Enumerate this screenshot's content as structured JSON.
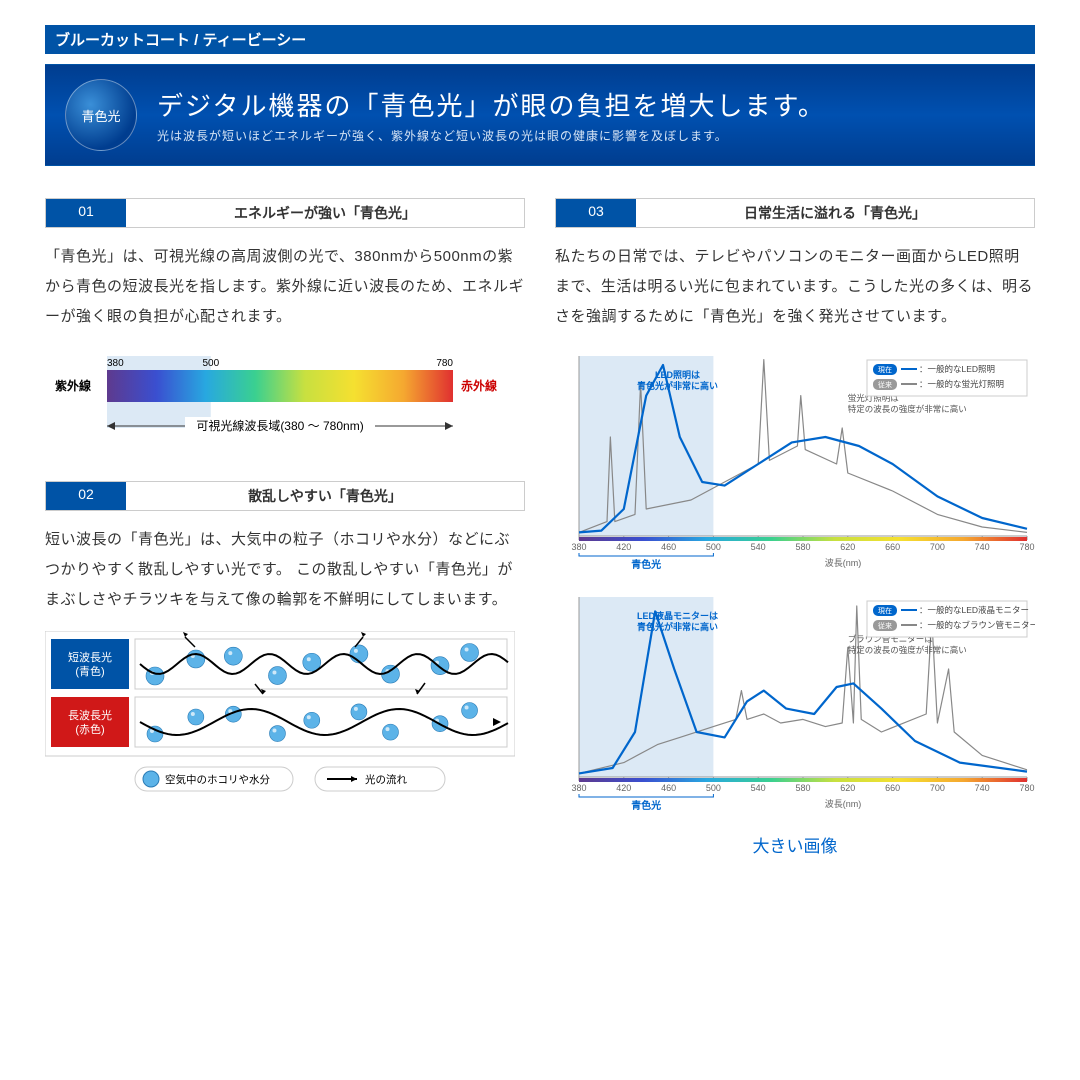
{
  "topbar": "ブルーカットコート  /  ティービーシー",
  "hero": {
    "circle": "青色光",
    "title": "デジタル機器の「青色光」が眼の負担を増大します。",
    "sub": "光は波長が短いほどエネルギーが強く、紫外線など短い波長の光は眼の健康に影響を及ぼします。"
  },
  "sec01": {
    "num": "01",
    "title": "エネルギーが強い「青色光」",
    "text": "「青色光」は、可視光線の高周波側の光で、380nmから500nmの紫から青色の短波長光を指します。紫外線に近い波長のため、エネルギーが強く眼の負担が心配されます。"
  },
  "sec02": {
    "num": "02",
    "title": "散乱しやすい「青色光」",
    "text": "短い波長の「青色光」は、大気中の粒子（ホコリや水分）などにぶつかりやすく散乱しやすい光です。 この散乱しやすい「青色光」がまぶしさやチラツキを与えて像の輪郭を不鮮明にしてしまいます。"
  },
  "sec03": {
    "num": "03",
    "title": "日常生活に溢れる「青色光」",
    "text": "私たちの日常では、テレビやパソコンのモニター画面からLED照明まで、生活は明るい光に包まれています。こうした光の多くは、明るさを強調するために「青色光」を強く発光させています。"
  },
  "spectrum": {
    "min": 380,
    "mid": 500,
    "max": 780,
    "left_label": "紫外線",
    "right_label": "赤外線",
    "caption": "可視光線波長域(380 〜 780nm)",
    "bluezone_color": "#dce9f5",
    "gradient": [
      "#5e3a8e",
      "#3a4fd0",
      "#28a8e0",
      "#3ad090",
      "#c8e040",
      "#f5e030",
      "#f5a830",
      "#e03030"
    ]
  },
  "scatter": {
    "short": {
      "label1": "短波長光",
      "label2": "(青色)",
      "bg": "#0053a6"
    },
    "long": {
      "label1": "長波長光",
      "label2": "(赤色)",
      "bg": "#d01818"
    },
    "legend_particle": "空気中のホコリや水分",
    "legend_flow": "光の流れ",
    "particle_color": "#5cb3e8"
  },
  "charts": {
    "xmin": 380,
    "xmax": 780,
    "xtick": 40,
    "xlabel": "波長(nm)",
    "blue_label": "青色光",
    "bluezone": [
      380,
      500
    ],
    "bluezone_color": "#dce9f5",
    "led_color": "#0066cc",
    "conv_color": "#888888",
    "chart1": {
      "note": "LED照明は\n青色光が非常に高い",
      "note2": "蛍光灯照明は\n特定の波長の強度が非常に高い",
      "legend": [
        {
          "badge": "現在",
          "text": "：一般的なLED照明"
        },
        {
          "badge": "従来",
          "text": "：一般的な蛍光灯照明"
        }
      ],
      "led": [
        [
          380,
          2
        ],
        [
          400,
          3
        ],
        [
          420,
          15
        ],
        [
          440,
          78
        ],
        [
          455,
          95
        ],
        [
          470,
          55
        ],
        [
          490,
          30
        ],
        [
          510,
          28
        ],
        [
          540,
          40
        ],
        [
          570,
          52
        ],
        [
          600,
          55
        ],
        [
          630,
          50
        ],
        [
          660,
          40
        ],
        [
          700,
          22
        ],
        [
          740,
          10
        ],
        [
          780,
          4
        ]
      ],
      "conv": [
        [
          380,
          2
        ],
        [
          405,
          8
        ],
        [
          408,
          55
        ],
        [
          412,
          8
        ],
        [
          430,
          12
        ],
        [
          435,
          85
        ],
        [
          440,
          15
        ],
        [
          480,
          20
        ],
        [
          540,
          40
        ],
        [
          545,
          98
        ],
        [
          550,
          42
        ],
        [
          575,
          50
        ],
        [
          578,
          78
        ],
        [
          582,
          48
        ],
        [
          610,
          40
        ],
        [
          615,
          60
        ],
        [
          620,
          35
        ],
        [
          660,
          25
        ],
        [
          700,
          12
        ],
        [
          740,
          5
        ],
        [
          780,
          2
        ]
      ]
    },
    "chart2": {
      "note": "LED液晶モニターは\n青色光が非常に高い",
      "note2": "ブラウン管モニターは\n特定の波長の強度が非常に高い",
      "legend": [
        {
          "badge": "現在",
          "text": "：一般的なLED液晶モニター"
        },
        {
          "badge": "従来",
          "text": "：一般的なブラウン管モニター"
        }
      ],
      "led": [
        [
          380,
          2
        ],
        [
          410,
          5
        ],
        [
          430,
          25
        ],
        [
          448,
          92
        ],
        [
          465,
          60
        ],
        [
          485,
          25
        ],
        [
          510,
          22
        ],
        [
          530,
          42
        ],
        [
          545,
          48
        ],
        [
          565,
          38
        ],
        [
          590,
          35
        ],
        [
          610,
          50
        ],
        [
          625,
          52
        ],
        [
          650,
          38
        ],
        [
          680,
          20
        ],
        [
          720,
          8
        ],
        [
          780,
          3
        ]
      ],
      "conv": [
        [
          380,
          2
        ],
        [
          420,
          8
        ],
        [
          450,
          18
        ],
        [
          470,
          22
        ],
        [
          500,
          28
        ],
        [
          520,
          32
        ],
        [
          525,
          48
        ],
        [
          530,
          32
        ],
        [
          545,
          35
        ],
        [
          560,
          30
        ],
        [
          580,
          32
        ],
        [
          600,
          28
        ],
        [
          615,
          30
        ],
        [
          620,
          72
        ],
        [
          625,
          30
        ],
        [
          628,
          95
        ],
        [
          632,
          32
        ],
        [
          650,
          25
        ],
        [
          690,
          35
        ],
        [
          695,
          88
        ],
        [
          700,
          30
        ],
        [
          710,
          60
        ],
        [
          715,
          25
        ],
        [
          740,
          12
        ],
        [
          780,
          4
        ]
      ]
    }
  },
  "big_link": "大きい画像"
}
